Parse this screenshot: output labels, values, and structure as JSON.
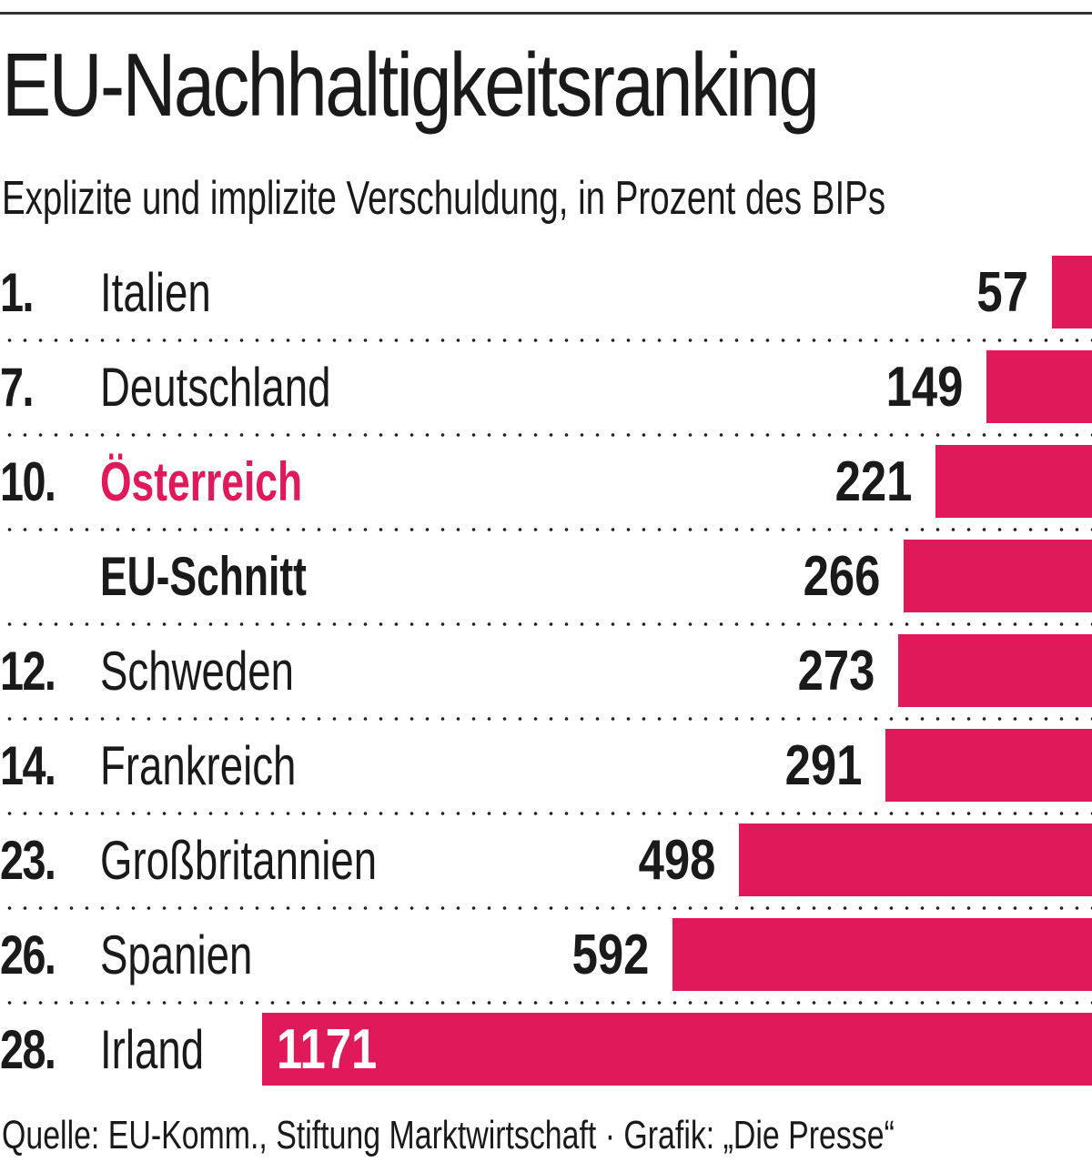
{
  "title": "EU-Nachhaltigkeitsranking",
  "subtitle": "Explizite und implizite Verschuldung, in Prozent des BIPs",
  "source": "Quelle: EU-Komm., Stiftung Marktwirtschaft · Grafik: „Die Presse“",
  "colors": {
    "bar": "#e0195a",
    "accent_text": "#e0195a",
    "text": "#1a1a1a"
  },
  "chart_data": {
    "type": "bar",
    "orientation": "horizontal",
    "title": "EU-Nachhaltigkeitsranking",
    "subtitle": "Explizite und implizite Verschuldung, in Prozent des BIPs",
    "xlabel": "",
    "ylabel": "",
    "xlim": [
      0,
      1171
    ],
    "grid": false,
    "legend": "none",
    "categories": [
      "Italien",
      "Deutschland",
      "Österreich",
      "EU-Schnitt",
      "Schweden",
      "Frankreich",
      "Großbritannien",
      "Spanien",
      "Irland"
    ],
    "ranks": [
      "1.",
      "7.",
      "10.",
      "",
      "12.",
      "14.",
      "23.",
      "26.",
      "28."
    ],
    "values": [
      57,
      149,
      221,
      266,
      273,
      291,
      498,
      592,
      1171
    ],
    "styles": [
      "normal",
      "normal",
      "accent",
      "bold",
      "normal",
      "normal",
      "normal",
      "normal",
      "normal"
    ]
  }
}
